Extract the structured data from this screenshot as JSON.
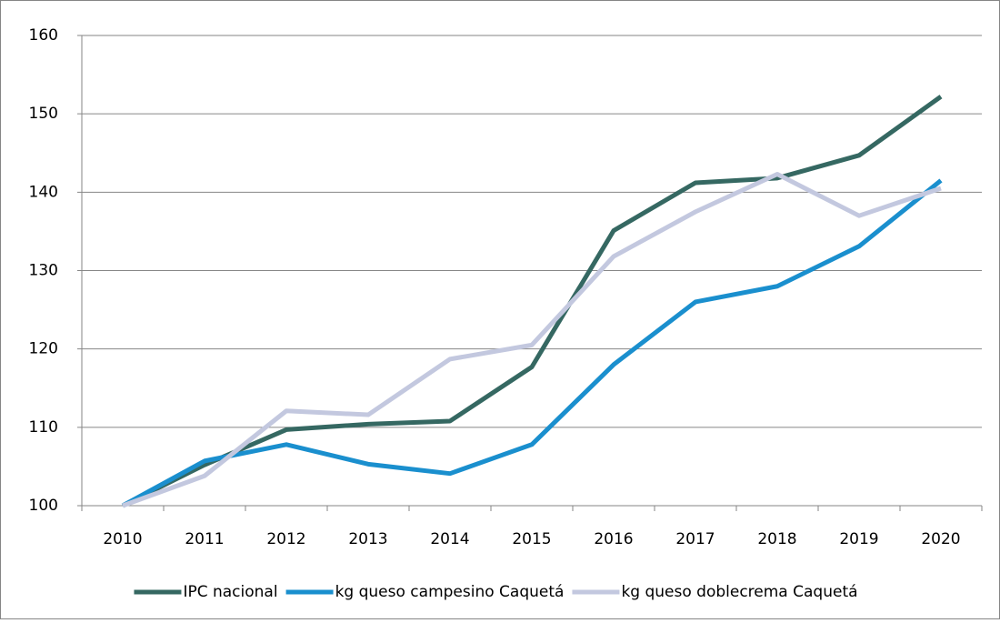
{
  "chart_data": {
    "type": "line",
    "categories": [
      "2010",
      "2011",
      "2012",
      "2013",
      "2014",
      "2015",
      "2016",
      "2017",
      "2018",
      "2019",
      "2020"
    ],
    "series": [
      {
        "name": "IPC nacional",
        "color": "#356862",
        "values": [
          100,
          105.2,
          109.7,
          110.4,
          110.8,
          117.7,
          135.1,
          141.2,
          141.8,
          144.7,
          152.2
        ]
      },
      {
        "name": "kg queso campesino Caquetá",
        "color": "#1a8fce",
        "values": [
          100,
          105.7,
          107.8,
          105.3,
          104.1,
          107.8,
          118.0,
          126.0,
          128.0,
          133.1,
          141.5
        ]
      },
      {
        "name": "kg queso doblecrema Caquetá",
        "color": "#c3c8df",
        "values": [
          100,
          103.8,
          112.1,
          111.6,
          118.7,
          120.5,
          131.8,
          137.5,
          142.3,
          137.0,
          140.5
        ]
      }
    ],
    "ylim": [
      100,
      160
    ],
    "yticks": [
      100,
      110,
      120,
      130,
      140,
      150,
      160
    ],
    "grid": true,
    "legend": "bottom"
  }
}
